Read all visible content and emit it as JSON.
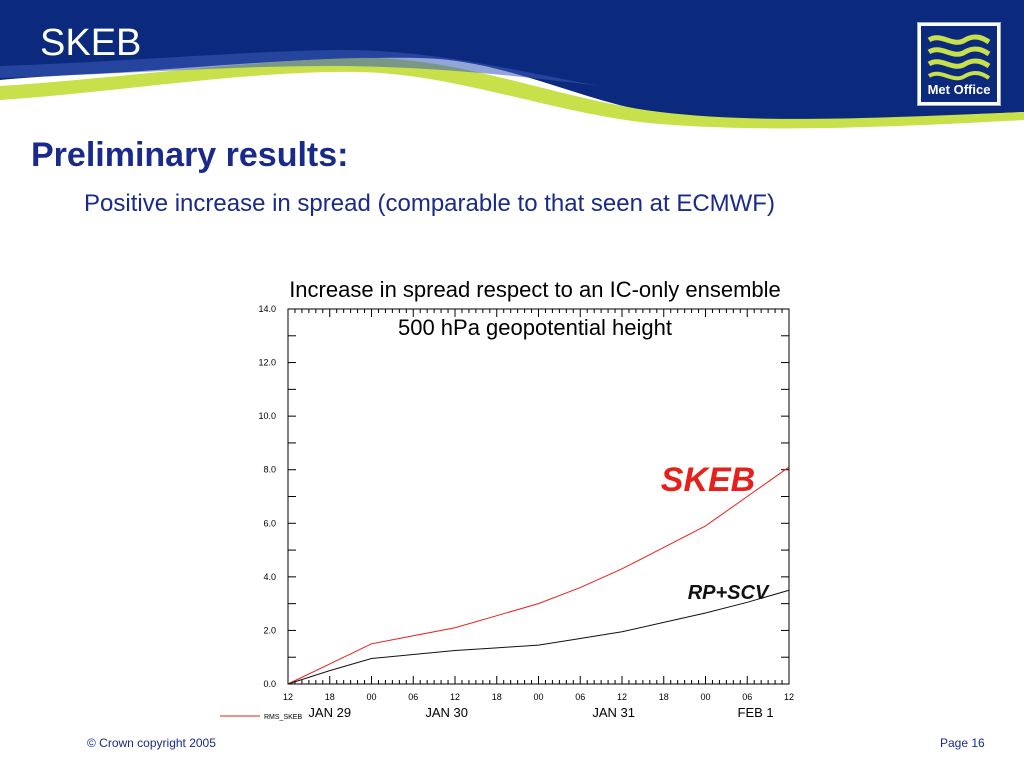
{
  "slide": {
    "title": "SKEB",
    "heading": "Preliminary results:",
    "subheading": "Positive increase in spread (comparable to that seen at ECMWF)",
    "footer_copyright": "© Crown copyright 2005",
    "footer_page": "Page 16",
    "logo_text": "Met Office"
  },
  "colors": {
    "header_blue": "#0b2a7e",
    "header_green": "#c8e04a",
    "text_blue": "#1a2a8a",
    "skeb_red": "#e8201a",
    "rpscv_black": "#111111"
  },
  "chart_data": {
    "type": "line",
    "title": "Increase in spread respect to an IC-only ensemble",
    "subtitle": "500 hPa geopotential height",
    "x": [
      "12",
      "18",
      "00",
      "06",
      "12",
      "18",
      "00",
      "06",
      "12",
      "18",
      "00",
      "06",
      "12"
    ],
    "x_dates": [
      "JAN 29",
      "JAN 30",
      "JAN 31",
      "FEB  1"
    ],
    "ylim": [
      0,
      14
    ],
    "yticks": [
      "0.0",
      "2.0",
      "4.0",
      "6.0",
      "8.0",
      "10.0",
      "12.0",
      "14.0"
    ],
    "legend_entry": "RMS_SKEB",
    "series": [
      {
        "name": "SKEB",
        "color": "#e8201a",
        "values": [
          0.0,
          0.75,
          1.5,
          1.8,
          2.1,
          2.55,
          3.0,
          3.6,
          4.3,
          5.1,
          5.9,
          7.0,
          8.1
        ]
      },
      {
        "name": "RP+SCV",
        "color": "#111111",
        "values": [
          0.0,
          0.5,
          0.95,
          1.1,
          1.25,
          1.35,
          1.45,
          1.7,
          1.95,
          2.3,
          2.65,
          3.05,
          3.5
        ]
      }
    ]
  }
}
